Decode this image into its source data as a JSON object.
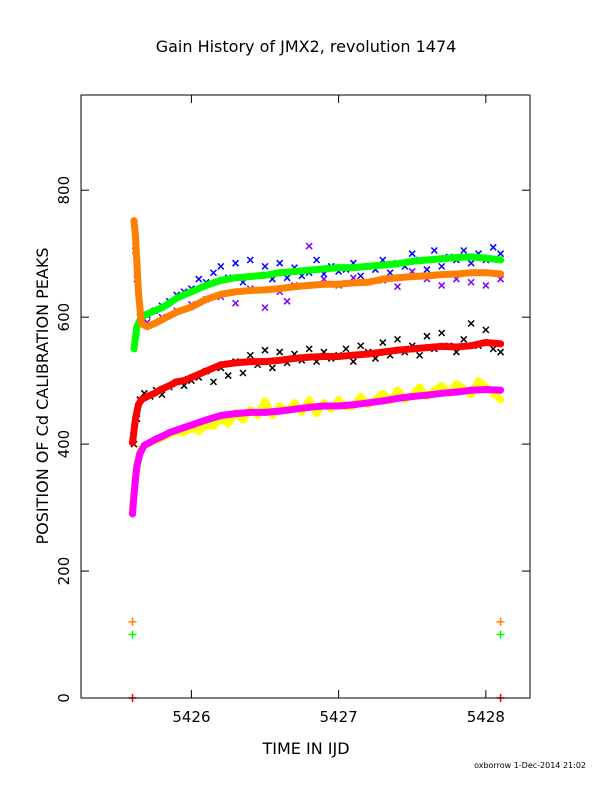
{
  "chart_data": {
    "type": "scatter",
    "title": "Gain History of JMX2, revolution 1474",
    "xlabel": "TIME IN IJD",
    "ylabel": "POSITION OF Cd CALIBRATION PEAKS",
    "xlim": [
      5425.25,
      5428.3
    ],
    "ylim": [
      0,
      950
    ],
    "xticks": [
      5426,
      5427,
      5428
    ],
    "yticks": [
      0,
      200,
      400,
      600,
      800
    ],
    "grid": false,
    "legend": "none",
    "footer": "oxborrow 1-Dec-2014 21:02",
    "series": [
      {
        "color": "#0000ff",
        "marker": "x",
        "x": [
          5425.62,
          5425.63,
          5425.65,
          5425.67,
          5425.7,
          5425.75,
          5425.8,
          5425.85,
          5425.9,
          5425.95,
          5426.0,
          5426.05,
          5426.1,
          5426.15,
          5426.2,
          5426.25,
          5426.3,
          5426.35,
          5426.4,
          5426.45,
          5426.5,
          5426.55,
          5426.6,
          5426.65,
          5426.7,
          5426.75,
          5426.8,
          5426.85,
          5426.9,
          5426.95,
          5427.0,
          5427.05,
          5427.1,
          5427.15,
          5427.2,
          5427.25,
          5427.3,
          5427.35,
          5427.4,
          5427.45,
          5427.5,
          5427.55,
          5427.6,
          5427.65,
          5427.7,
          5427.75,
          5427.8,
          5427.85,
          5427.9,
          5427.95,
          5428.0,
          5428.05,
          5428.1
        ],
        "y": [
          712,
          660,
          600,
          598,
          603,
          610,
          618,
          625,
          635,
          640,
          645,
          660,
          655,
          670,
          680,
          662,
          685,
          655,
          690,
          665,
          680,
          660,
          685,
          662,
          678,
          665,
          670,
          690,
          668,
          680,
          672,
          675,
          685,
          665,
          680,
          675,
          690,
          670,
          685,
          680,
          700,
          690,
          675,
          705,
          680,
          695,
          690,
          705,
          685,
          700,
          690,
          710,
          700
        ]
      },
      {
        "color": "#8000ff",
        "marker": "x",
        "x": [
          5425.62,
          5425.64,
          5425.67,
          5425.7,
          5425.8,
          5425.9,
          5426.0,
          5426.1,
          5426.2,
          5426.3,
          5426.4,
          5426.5,
          5426.6,
          5426.65,
          5426.7,
          5426.8,
          5426.9,
          5427.0,
          5427.1,
          5427.2,
          5427.3,
          5427.4,
          5427.5,
          5427.6,
          5427.7,
          5427.8,
          5427.9,
          5428.0,
          5428.1
        ],
        "y": [
          705,
          640,
          590,
          592,
          600,
          610,
          620,
          628,
          632,
          622,
          645,
          615,
          640,
          625,
          650,
          712,
          660,
          650,
          662,
          655,
          658,
          648,
          672,
          660,
          650,
          660,
          655,
          650,
          660
        ]
      },
      {
        "color": "#00ff00",
        "marker": "dot",
        "x": [
          5425.61,
          5425.63,
          5425.66,
          5425.7,
          5425.75,
          5425.8,
          5425.85,
          5425.9,
          5425.95,
          5426.0,
          5426.1,
          5426.2,
          5426.3,
          5426.4,
          5426.5,
          5426.6,
          5426.7,
          5426.8,
          5426.9,
          5427.0,
          5427.1,
          5427.2,
          5427.3,
          5427.4,
          5427.5,
          5427.6,
          5427.7,
          5427.8,
          5427.9,
          5428.0,
          5428.1
        ],
        "y": [
          550,
          585,
          600,
          605,
          610,
          615,
          622,
          630,
          635,
          640,
          650,
          658,
          662,
          664,
          666,
          670,
          672,
          674,
          676,
          678,
          678,
          680,
          682,
          684,
          688,
          690,
          692,
          694,
          695,
          693,
          690
        ]
      },
      {
        "color": "#ff8000",
        "marker": "dot",
        "x": [
          5425.61,
          5425.62,
          5425.64,
          5425.66,
          5425.7,
          5425.75,
          5425.8,
          5425.85,
          5425.9,
          5425.95,
          5426.0,
          5426.1,
          5426.2,
          5426.3,
          5426.4,
          5426.5,
          5426.6,
          5426.7,
          5426.8,
          5426.9,
          5427.0,
          5427.1,
          5427.2,
          5427.3,
          5427.4,
          5427.5,
          5427.6,
          5427.7,
          5427.8,
          5427.9,
          5428.0,
          5428.1
        ],
        "y": [
          752,
          728,
          640,
          590,
          585,
          590,
          596,
          602,
          608,
          612,
          616,
          628,
          636,
          640,
          642,
          643,
          645,
          648,
          650,
          652,
          652,
          654,
          655,
          660,
          662,
          664,
          665,
          667,
          668,
          670,
          670,
          668
        ]
      },
      {
        "color": "#000000",
        "marker": "x",
        "x": [
          5425.61,
          5425.63,
          5425.65,
          5425.68,
          5425.72,
          5425.76,
          5425.8,
          5425.85,
          5425.9,
          5425.95,
          5426.0,
          5426.05,
          5426.1,
          5426.15,
          5426.2,
          5426.25,
          5426.3,
          5426.35,
          5426.4,
          5426.45,
          5426.5,
          5426.55,
          5426.6,
          5426.65,
          5426.7,
          5426.75,
          5426.8,
          5426.85,
          5426.9,
          5426.95,
          5427.0,
          5427.05,
          5427.1,
          5427.15,
          5427.2,
          5427.25,
          5427.3,
          5427.35,
          5427.4,
          5427.45,
          5427.5,
          5427.55,
          5427.6,
          5427.65,
          5427.7,
          5427.75,
          5427.8,
          5427.85,
          5427.9,
          5427.95,
          5428.0,
          5428.05,
          5428.1
        ],
        "y": [
          400,
          440,
          470,
          480,
          475,
          485,
          478,
          490,
          498,
          492,
          500,
          505,
          515,
          498,
          520,
          508,
          530,
          512,
          540,
          525,
          548,
          520,
          545,
          528,
          542,
          532,
          550,
          530,
          545,
          535,
          540,
          550,
          530,
          555,
          545,
          535,
          560,
          540,
          565,
          545,
          555,
          540,
          570,
          550,
          575,
          555,
          545,
          565,
          590,
          555,
          580,
          550,
          545
        ]
      },
      {
        "color": "#ff0000",
        "marker": "dot",
        "x": [
          5425.6,
          5425.62,
          5425.64,
          5425.66,
          5425.7,
          5425.75,
          5425.8,
          5425.85,
          5425.9,
          5425.95,
          5426.0,
          5426.1,
          5426.2,
          5426.3,
          5426.4,
          5426.5,
          5426.6,
          5426.7,
          5426.8,
          5426.9,
          5427.0,
          5427.1,
          5427.2,
          5427.3,
          5427.4,
          5427.5,
          5427.6,
          5427.7,
          5427.8,
          5427.9,
          5428.0,
          5428.1
        ],
        "y": [
          402,
          440,
          462,
          470,
          475,
          480,
          487,
          492,
          498,
          500,
          505,
          515,
          525,
          528,
          530,
          530,
          532,
          535,
          537,
          538,
          538,
          540,
          542,
          545,
          548,
          550,
          552,
          554,
          553,
          555,
          560,
          558
        ]
      },
      {
        "color": "#ffff00",
        "marker": "dot",
        "x": [
          5425.6,
          5425.62,
          5425.64,
          5425.66,
          5425.7,
          5425.75,
          5425.8,
          5425.85,
          5425.9,
          5425.95,
          5426.0,
          5426.05,
          5426.1,
          5426.15,
          5426.2,
          5426.25,
          5426.3,
          5426.35,
          5426.4,
          5426.45,
          5426.5,
          5426.55,
          5426.6,
          5426.65,
          5426.7,
          5426.75,
          5426.8,
          5426.85,
          5426.9,
          5426.95,
          5427.0,
          5427.05,
          5427.1,
          5427.15,
          5427.2,
          5427.25,
          5427.3,
          5427.35,
          5427.4,
          5427.45,
          5427.5,
          5427.55,
          5427.6,
          5427.65,
          5427.7,
          5427.75,
          5427.8,
          5427.85,
          5427.9,
          5427.95,
          5428.0,
          5428.05,
          5428.1
        ],
        "y": [
          300,
          350,
          380,
          395,
          400,
          405,
          410,
          415,
          420,
          418,
          425,
          420,
          430,
          428,
          440,
          432,
          450,
          438,
          455,
          445,
          468,
          445,
          460,
          452,
          465,
          450,
          470,
          448,
          465,
          455,
          470,
          458,
          460,
          475,
          462,
          470,
          480,
          468,
          485,
          470,
          478,
          490,
          475,
          485,
          492,
          480,
          495,
          488,
          478,
          500,
          490,
          480,
          470
        ]
      },
      {
        "color": "#ff00ff",
        "marker": "dot",
        "x": [
          5425.6,
          5425.61,
          5425.62,
          5425.63,
          5425.65,
          5425.68,
          5425.72,
          5425.76,
          5425.8,
          5425.85,
          5425.9,
          5425.95,
          5426.0,
          5426.1,
          5426.2,
          5426.3,
          5426.4,
          5426.5,
          5426.6,
          5426.7,
          5426.8,
          5426.9,
          5427.0,
          5427.1,
          5427.2,
          5427.3,
          5427.4,
          5427.5,
          5427.6,
          5427.7,
          5427.8,
          5427.9,
          5428.0,
          5428.1
        ],
        "y": [
          290,
          320,
          345,
          365,
          385,
          398,
          403,
          408,
          412,
          418,
          422,
          426,
          430,
          438,
          445,
          448,
          450,
          450,
          452,
          455,
          458,
          460,
          460,
          462,
          465,
          468,
          472,
          475,
          477,
          480,
          482,
          485,
          486,
          485
        ]
      },
      {
        "color": "#ff8000",
        "marker": "plus",
        "x": [
          5425.6,
          5428.1
        ],
        "y": [
          120,
          120
        ]
      },
      {
        "color": "#00ff00",
        "marker": "plus",
        "x": [
          5425.6,
          5428.1
        ],
        "y": [
          100,
          100
        ]
      },
      {
        "color": "#ff0000",
        "marker": "plus",
        "x": [
          5425.6,
          5428.1
        ],
        "y": [
          0,
          0
        ]
      }
    ]
  }
}
